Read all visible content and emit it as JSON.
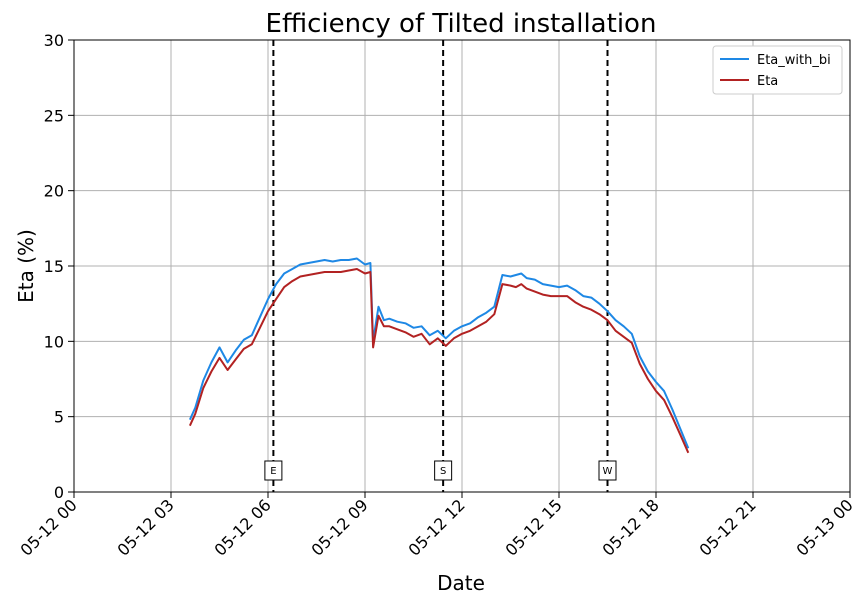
{
  "chart_data": {
    "type": "line",
    "title": "Efficiency of Tilted installation",
    "xlabel": "Date",
    "ylabel": "Eta (%)",
    "ylim": [
      0,
      30
    ],
    "xlim": [
      "2023-05-12T00:00",
      "2023-05-13T00:00"
    ],
    "x_ticks": [
      "05-12 00",
      "05-12 03",
      "05-12 06",
      "05-12 09",
      "05-12 12",
      "05-12 15",
      "05-12 18",
      "05-12 21",
      "05-13 00"
    ],
    "y_ticks": [
      "0",
      "5",
      "10",
      "15",
      "20",
      "25",
      "30"
    ],
    "grid": true,
    "legend_position": "top-right",
    "x": [
      "03:35",
      "03:45",
      "04:00",
      "04:15",
      "04:30",
      "04:45",
      "05:00",
      "05:15",
      "05:30",
      "05:45",
      "06:00",
      "06:15",
      "06:30",
      "06:45",
      "07:00",
      "07:15",
      "07:30",
      "07:45",
      "08:00",
      "08:15",
      "08:30",
      "08:45",
      "09:00",
      "09:10",
      "09:15",
      "09:25",
      "09:35",
      "09:45",
      "10:00",
      "10:15",
      "10:30",
      "10:45",
      "11:00",
      "11:15",
      "11:30",
      "11:45",
      "12:00",
      "12:15",
      "12:30",
      "12:45",
      "13:00",
      "13:15",
      "13:30",
      "13:40",
      "13:50",
      "14:00",
      "14:15",
      "14:30",
      "14:45",
      "15:00",
      "15:15",
      "15:30",
      "15:45",
      "16:00",
      "16:15",
      "16:30",
      "16:45",
      "17:00",
      "17:15",
      "17:30",
      "17:45",
      "18:00",
      "18:15",
      "18:30",
      "18:45",
      "19:00"
    ],
    "series": [
      {
        "name": "Eta_with_bi",
        "color": "#1e88e5",
        "values": [
          4.8,
          5.6,
          7.4,
          8.6,
          9.6,
          8.6,
          9.4,
          10.1,
          10.4,
          11.6,
          12.8,
          13.8,
          14.5,
          14.8,
          15.1,
          15.2,
          15.3,
          15.4,
          15.3,
          15.4,
          15.4,
          15.5,
          15.1,
          15.2,
          10.0,
          12.3,
          11.4,
          11.5,
          11.3,
          11.2,
          10.9,
          11.0,
          10.4,
          10.7,
          10.2,
          10.7,
          11.0,
          11.2,
          11.6,
          11.9,
          12.3,
          14.4,
          14.3,
          14.4,
          14.5,
          14.2,
          14.1,
          13.8,
          13.7,
          13.6,
          13.7,
          13.4,
          13.0,
          12.9,
          12.5,
          12.0,
          11.4,
          11.0,
          10.5,
          9.0,
          8.0,
          7.3,
          6.7,
          5.5,
          4.2,
          2.9
        ]
      },
      {
        "name": "Eta",
        "color": "#b22222",
        "values": [
          4.4,
          5.2,
          6.9,
          8.0,
          8.9,
          8.1,
          8.8,
          9.5,
          9.8,
          10.9,
          12.0,
          12.8,
          13.6,
          14.0,
          14.3,
          14.4,
          14.5,
          14.6,
          14.6,
          14.6,
          14.7,
          14.8,
          14.5,
          14.6,
          9.6,
          11.7,
          11.0,
          11.0,
          10.8,
          10.6,
          10.3,
          10.5,
          9.8,
          10.2,
          9.7,
          10.2,
          10.5,
          10.7,
          11.0,
          11.3,
          11.8,
          13.8,
          13.7,
          13.6,
          13.8,
          13.5,
          13.3,
          13.1,
          13.0,
          13.0,
          13.0,
          12.6,
          12.3,
          12.1,
          11.8,
          11.4,
          10.7,
          10.3,
          9.9,
          8.5,
          7.5,
          6.7,
          6.1,
          5.0,
          3.8,
          2.6
        ]
      }
    ],
    "markers": [
      {
        "label": "E",
        "x": "06:10"
      },
      {
        "label": "S",
        "x": "11:25"
      },
      {
        "label": "W",
        "x": "16:30"
      }
    ]
  }
}
